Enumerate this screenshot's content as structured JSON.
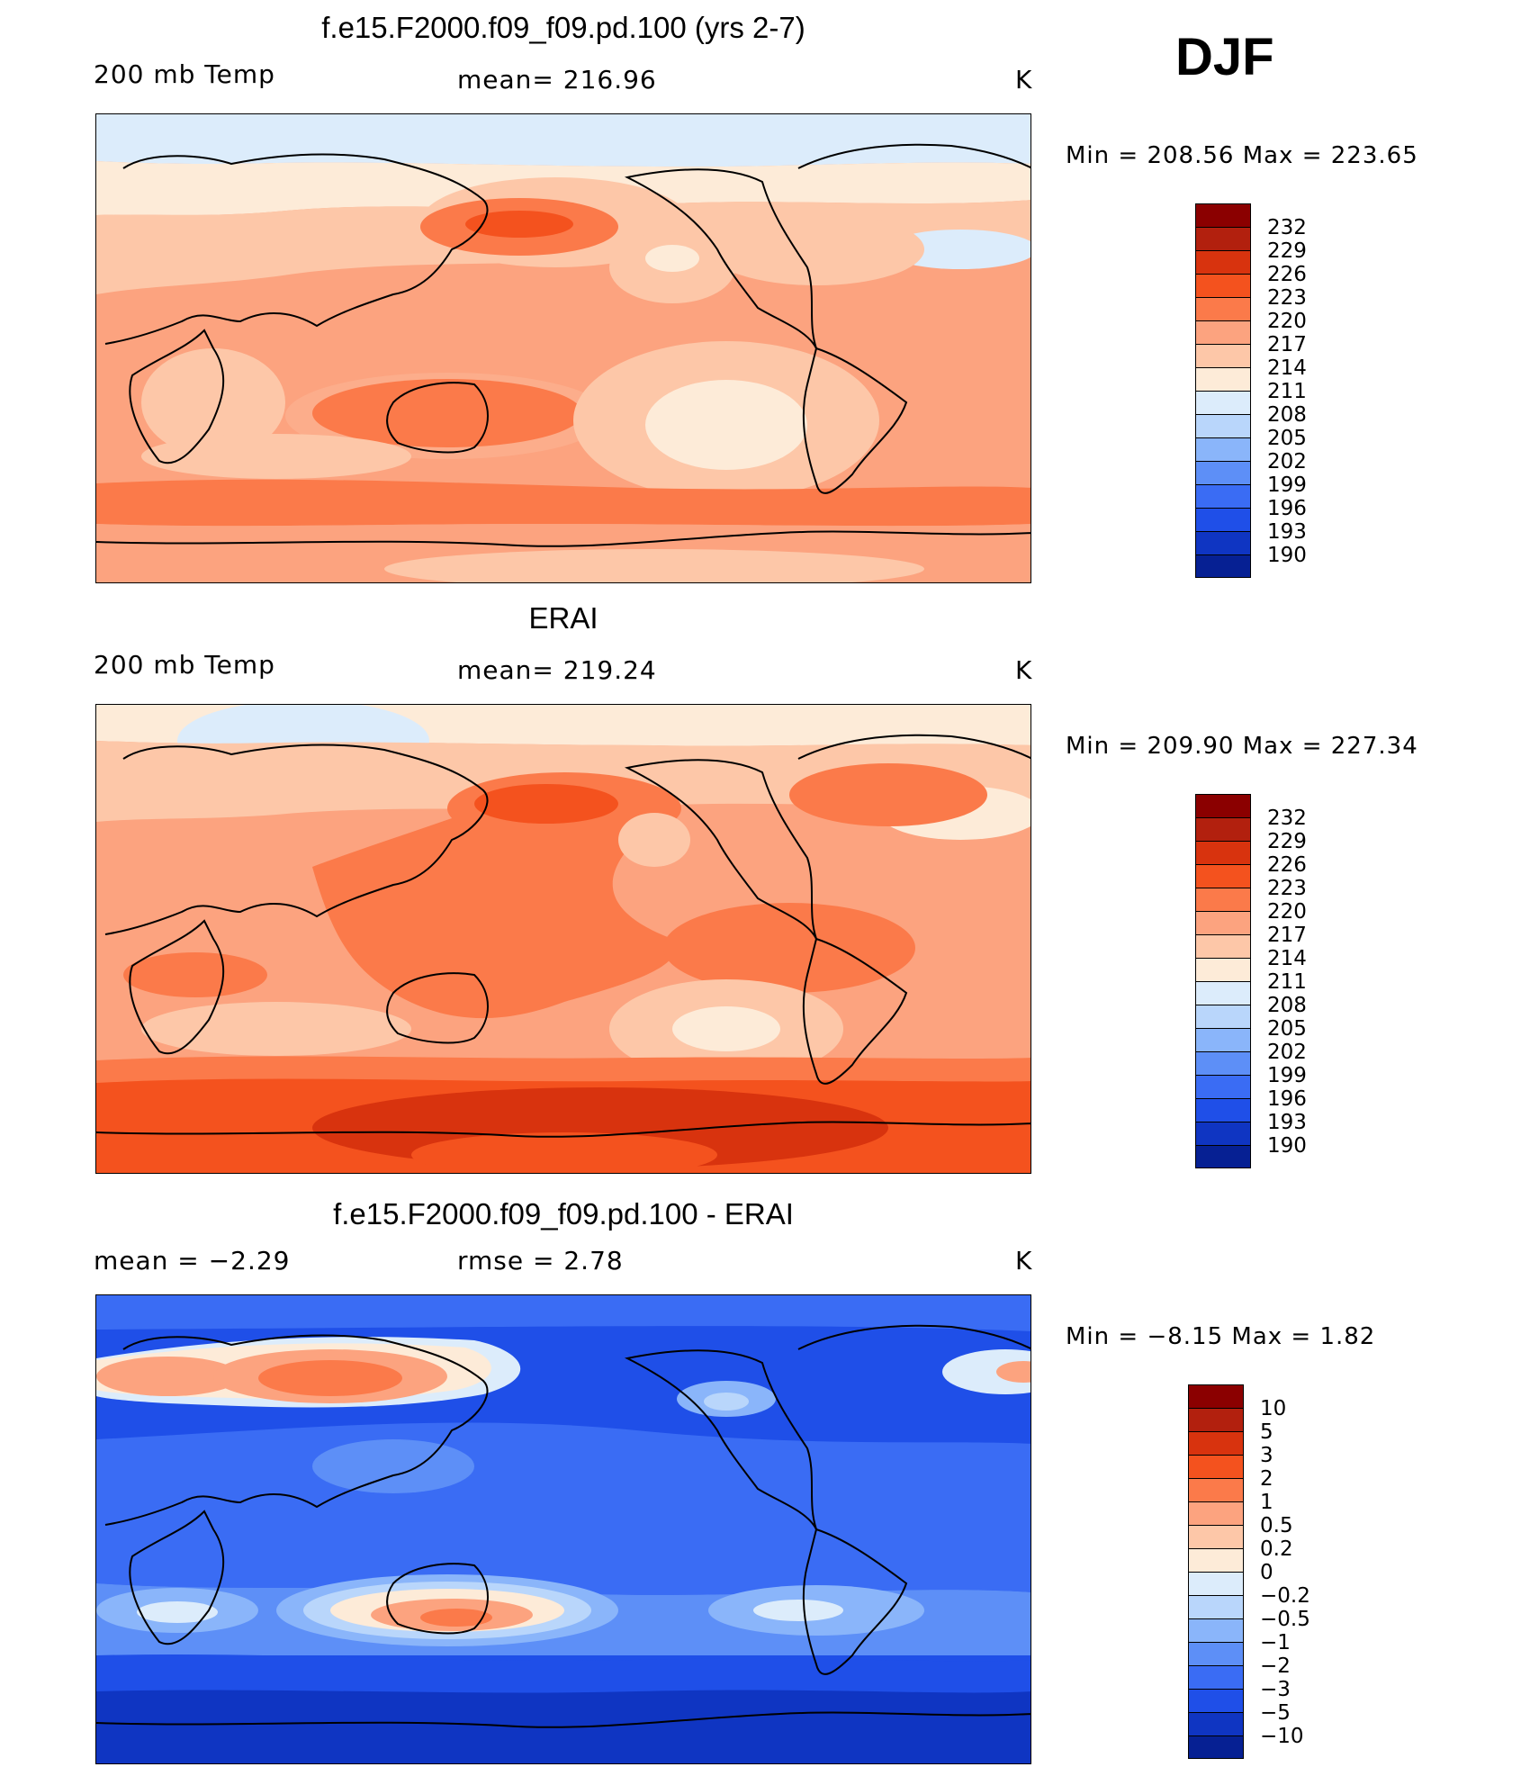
{
  "season": "DJF",
  "panels": [
    {
      "id": "model",
      "title": "f.e15.F2000.f09_f09.pd.100 (yrs 2-7)",
      "left_label": "200 mb Temp",
      "center_label": "mean=  216.96",
      "units": "K",
      "minmax": "Min  =  208.56  Max  =  223.65",
      "colorbar_labels": [
        "232",
        "229",
        "226",
        "223",
        "220",
        "217",
        "214",
        "211",
        "208",
        "205",
        "202",
        "199",
        "196",
        "193",
        "190"
      ]
    },
    {
      "id": "obs",
      "title": "ERAI",
      "left_label": "200 mb Temp",
      "center_label": "mean=  219.24",
      "units": "K",
      "minmax": "Min  =  209.90  Max  =  227.34",
      "colorbar_labels": [
        "232",
        "229",
        "226",
        "223",
        "220",
        "217",
        "214",
        "211",
        "208",
        "205",
        "202",
        "199",
        "196",
        "193",
        "190"
      ]
    },
    {
      "id": "diff",
      "title": "f.e15.F2000.f09_f09.pd.100 - ERAI",
      "left_label": "mean  =     −2.29",
      "center_label": "rmse  =      2.78",
      "units": "K",
      "minmax": "Min  =     −8.15  Max  =       1.82",
      "colorbar_labels": [
        "10",
        "5",
        "3",
        "2",
        "1",
        "0.5",
        "0.2",
        "0",
        "−0.2",
        "−0.5",
        "−1",
        "−2",
        "−3",
        "−5",
        "−10"
      ]
    }
  ],
  "colors": {
    "scale": [
      "#8b0000",
      "#b2200e",
      "#d8330e",
      "#f4521e",
      "#fb7a4a",
      "#fca37f",
      "#fdc7a8",
      "#fdebd8",
      "#dcecfb",
      "#b9d6fb",
      "#8ab5fa",
      "#5d8ff7",
      "#3a6cf4",
      "#1f4fe8",
      "#0f35c2",
      "#062093"
    ]
  }
}
